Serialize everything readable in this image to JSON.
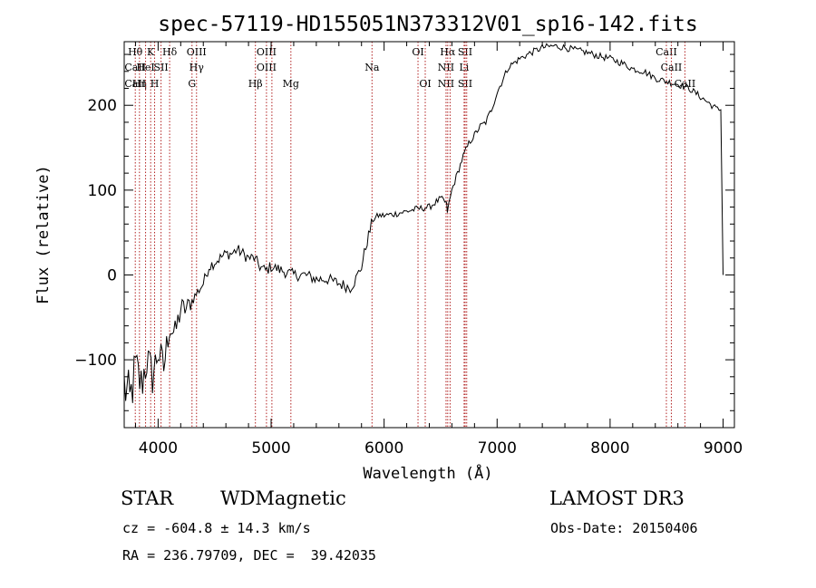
{
  "chart_data": {
    "type": "line",
    "title": "spec-57119-HD155051N373312V01_sp16-142.fits",
    "xlabel": "Wavelength (Å)",
    "ylabel": "Flux (relative)",
    "xlim": [
      3700,
      9100
    ],
    "ylim": [
      -180,
      275
    ],
    "xticks": [
      4000,
      5000,
      6000,
      7000,
      8000,
      9000
    ],
    "yticks": [
      -100,
      0,
      100,
      200
    ],
    "series": [
      {
        "name": "flux",
        "x": [
          3700,
          3750,
          3800,
          3850,
          3900,
          3950,
          4000,
          4050,
          4100,
          4150,
          4200,
          4250,
          4300,
          4350,
          4400,
          4450,
          4500,
          4550,
          4600,
          4650,
          4700,
          4750,
          4800,
          4850,
          4900,
          4950,
          5000,
          5100,
          5200,
          5300,
          5400,
          5500,
          5600,
          5700,
          5750,
          5800,
          5850,
          5900,
          5950,
          6000,
          6100,
          6200,
          6300,
          6400,
          6500,
          6550,
          6560,
          6600,
          6650,
          6700,
          6750,
          6800,
          6850,
          6900,
          6950,
          7000,
          7050,
          7100,
          7200,
          7300,
          7400,
          7500,
          7600,
          7700,
          7800,
          7900,
          8000,
          8100,
          8200,
          8300,
          8400,
          8500,
          8600,
          8700,
          8800,
          8900,
          8950,
          8980,
          9000
        ],
        "y": [
          -130,
          -150,
          -110,
          -130,
          -100,
          -120,
          -90,
          -110,
          -60,
          -70,
          -40,
          -40,
          -30,
          -20,
          -10,
          10,
          15,
          20,
          25,
          25,
          30,
          25,
          20,
          20,
          10,
          5,
          10,
          5,
          0,
          0,
          -5,
          -5,
          -10,
          -15,
          -5,
          10,
          40,
          65,
          70,
          70,
          72,
          75,
          78,
          80,
          90,
          85,
          75,
          100,
          120,
          140,
          155,
          165,
          175,
          180,
          195,
          215,
          230,
          245,
          255,
          262,
          268,
          270,
          268,
          265,
          262,
          258,
          255,
          250,
          243,
          240,
          232,
          228,
          225,
          220,
          210,
          200,
          195,
          195,
          0
        ]
      }
    ],
    "lines": [
      {
        "wl": 3798,
        "labels": [
          "Hθ",
          "CaII",
          "CaII"
        ]
      },
      {
        "wl": 3835,
        "labels": [
          "",
          "",
          "Hη"
        ]
      },
      {
        "wl": 3889,
        "labels": [
          "",
          "HeI",
          ""
        ]
      },
      {
        "wl": 3934,
        "labels": [
          "K",
          "",
          ""
        ]
      },
      {
        "wl": 3969,
        "labels": [
          "",
          "",
          "H"
        ]
      },
      {
        "wl": 4026,
        "labels": [
          "",
          "SII",
          ""
        ]
      },
      {
        "wl": 4102,
        "labels": [
          "Hδ",
          "",
          ""
        ]
      },
      {
        "wl": 4300,
        "labels": [
          "",
          "",
          "G"
        ]
      },
      {
        "wl": 4340,
        "labels": [
          "OIII",
          "Hγ",
          ""
        ]
      },
      {
        "wl": 4861,
        "labels": [
          "",
          "",
          "Hβ"
        ]
      },
      {
        "wl": 4959,
        "labels": [
          "OIII",
          "OIII",
          ""
        ]
      },
      {
        "wl": 5007,
        "labels": [
          "",
          "",
          ""
        ]
      },
      {
        "wl": 5175,
        "labels": [
          "",
          "",
          "Mg"
        ]
      },
      {
        "wl": 5893,
        "labels": [
          "",
          "Na",
          ""
        ]
      },
      {
        "wl": 6300,
        "labels": [
          "OI",
          "",
          ""
        ]
      },
      {
        "wl": 6364,
        "labels": [
          "",
          "",
          "OI"
        ]
      },
      {
        "wl": 6548,
        "labels": [
          "",
          "NII",
          "NII"
        ]
      },
      {
        "wl": 6563,
        "labels": [
          "Hα",
          "",
          ""
        ]
      },
      {
        "wl": 6584,
        "labels": [
          "",
          "",
          ""
        ]
      },
      {
        "wl": 6708,
        "labels": [
          "",
          "Li",
          ""
        ]
      },
      {
        "wl": 6717,
        "labels": [
          "SII",
          "",
          "SII"
        ]
      },
      {
        "wl": 6731,
        "labels": [
          "",
          "",
          ""
        ]
      },
      {
        "wl": 8498,
        "labels": [
          "CaII",
          "",
          ""
        ]
      },
      {
        "wl": 8542,
        "labels": [
          "",
          "CaII",
          ""
        ]
      },
      {
        "wl": 8662,
        "labels": [
          "",
          "",
          "CaII"
        ]
      }
    ]
  },
  "info": {
    "class_label": "STAR",
    "subclass": "WDMagnetic",
    "survey": "LAMOST DR3",
    "cz": "cz = -604.8 ± 14.3 km/s",
    "obs_date": "Obs-Date: 20150406",
    "coords": "RA = 236.79709, DEC =  39.42035"
  }
}
